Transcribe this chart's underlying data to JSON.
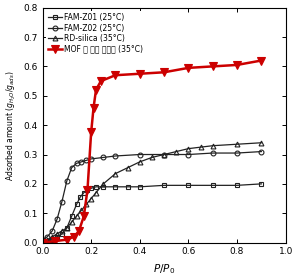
{
  "title": "",
  "xlabel": "$P/P_0$",
  "ylabel": "Adsorbed amount ($g_{H_2O}/g_{ads}$)",
  "xlim": [
    0.0,
    1.0
  ],
  "ylim": [
    0.0,
    0.8
  ],
  "xticks": [
    0.0,
    0.2,
    0.4,
    0.6,
    0.8,
    1.0
  ],
  "yticks": [
    0.0,
    0.1,
    0.2,
    0.3,
    0.4,
    0.5,
    0.6,
    0.7,
    0.8
  ],
  "series": [
    {
      "label": "FAM-Z01 (25°C)",
      "color": "#222222",
      "linewidth": 0.9,
      "marker": "s",
      "markersize": 3.5,
      "fillstyle": "none",
      "x": [
        0.0,
        0.02,
        0.04,
        0.06,
        0.08,
        0.1,
        0.12,
        0.14,
        0.155,
        0.17,
        0.185,
        0.2,
        0.22,
        0.25,
        0.3,
        0.35,
        0.4,
        0.5,
        0.6,
        0.7,
        0.8,
        0.9
      ],
      "y": [
        0.0,
        0.005,
        0.01,
        0.02,
        0.03,
        0.05,
        0.09,
        0.13,
        0.155,
        0.17,
        0.18,
        0.185,
        0.19,
        0.19,
        0.19,
        0.19,
        0.19,
        0.195,
        0.195,
        0.195,
        0.195,
        0.2
      ]
    },
    {
      "label": "FAM-Z02 (25°C)",
      "color": "#222222",
      "linewidth": 0.9,
      "marker": "o",
      "markersize": 3.5,
      "fillstyle": "none",
      "x": [
        0.0,
        0.02,
        0.04,
        0.06,
        0.08,
        0.1,
        0.12,
        0.14,
        0.16,
        0.18,
        0.2,
        0.25,
        0.3,
        0.4,
        0.5,
        0.6,
        0.7,
        0.8,
        0.9
      ],
      "y": [
        0.01,
        0.02,
        0.04,
        0.08,
        0.14,
        0.21,
        0.255,
        0.27,
        0.275,
        0.28,
        0.285,
        0.29,
        0.295,
        0.3,
        0.3,
        0.3,
        0.305,
        0.305,
        0.31
      ]
    },
    {
      "label": "RD-silica (35°C)",
      "color": "#222222",
      "linewidth": 0.9,
      "marker": "^",
      "markersize": 3.5,
      "fillstyle": "none",
      "x": [
        0.0,
        0.02,
        0.04,
        0.06,
        0.08,
        0.1,
        0.12,
        0.14,
        0.16,
        0.18,
        0.2,
        0.22,
        0.25,
        0.3,
        0.35,
        0.4,
        0.45,
        0.5,
        0.55,
        0.6,
        0.65,
        0.7,
        0.8,
        0.9
      ],
      "y": [
        0.0,
        0.01,
        0.02,
        0.03,
        0.04,
        0.05,
        0.07,
        0.09,
        0.11,
        0.13,
        0.15,
        0.17,
        0.2,
        0.235,
        0.255,
        0.275,
        0.29,
        0.3,
        0.31,
        0.32,
        0.325,
        0.33,
        0.335,
        0.34
      ]
    },
    {
      "label": "MOF 계 수분 흡착제 (35°C)",
      "color": "#cc0000",
      "linewidth": 1.8,
      "marker": "v",
      "markersize": 5.5,
      "fillstyle": "full",
      "x": [
        0.0,
        0.05,
        0.1,
        0.13,
        0.15,
        0.17,
        0.185,
        0.2,
        0.21,
        0.22,
        0.24,
        0.3,
        0.4,
        0.5,
        0.6,
        0.7,
        0.8,
        0.9
      ],
      "y": [
        0.0,
        0.005,
        0.01,
        0.02,
        0.04,
        0.09,
        0.18,
        0.375,
        0.46,
        0.52,
        0.55,
        0.57,
        0.575,
        0.58,
        0.595,
        0.6,
        0.605,
        0.62
      ]
    }
  ],
  "legend_loc": "upper left",
  "fontsize": 5.5,
  "label_fontsize": 7.5,
  "tick_fontsize": 6.5
}
